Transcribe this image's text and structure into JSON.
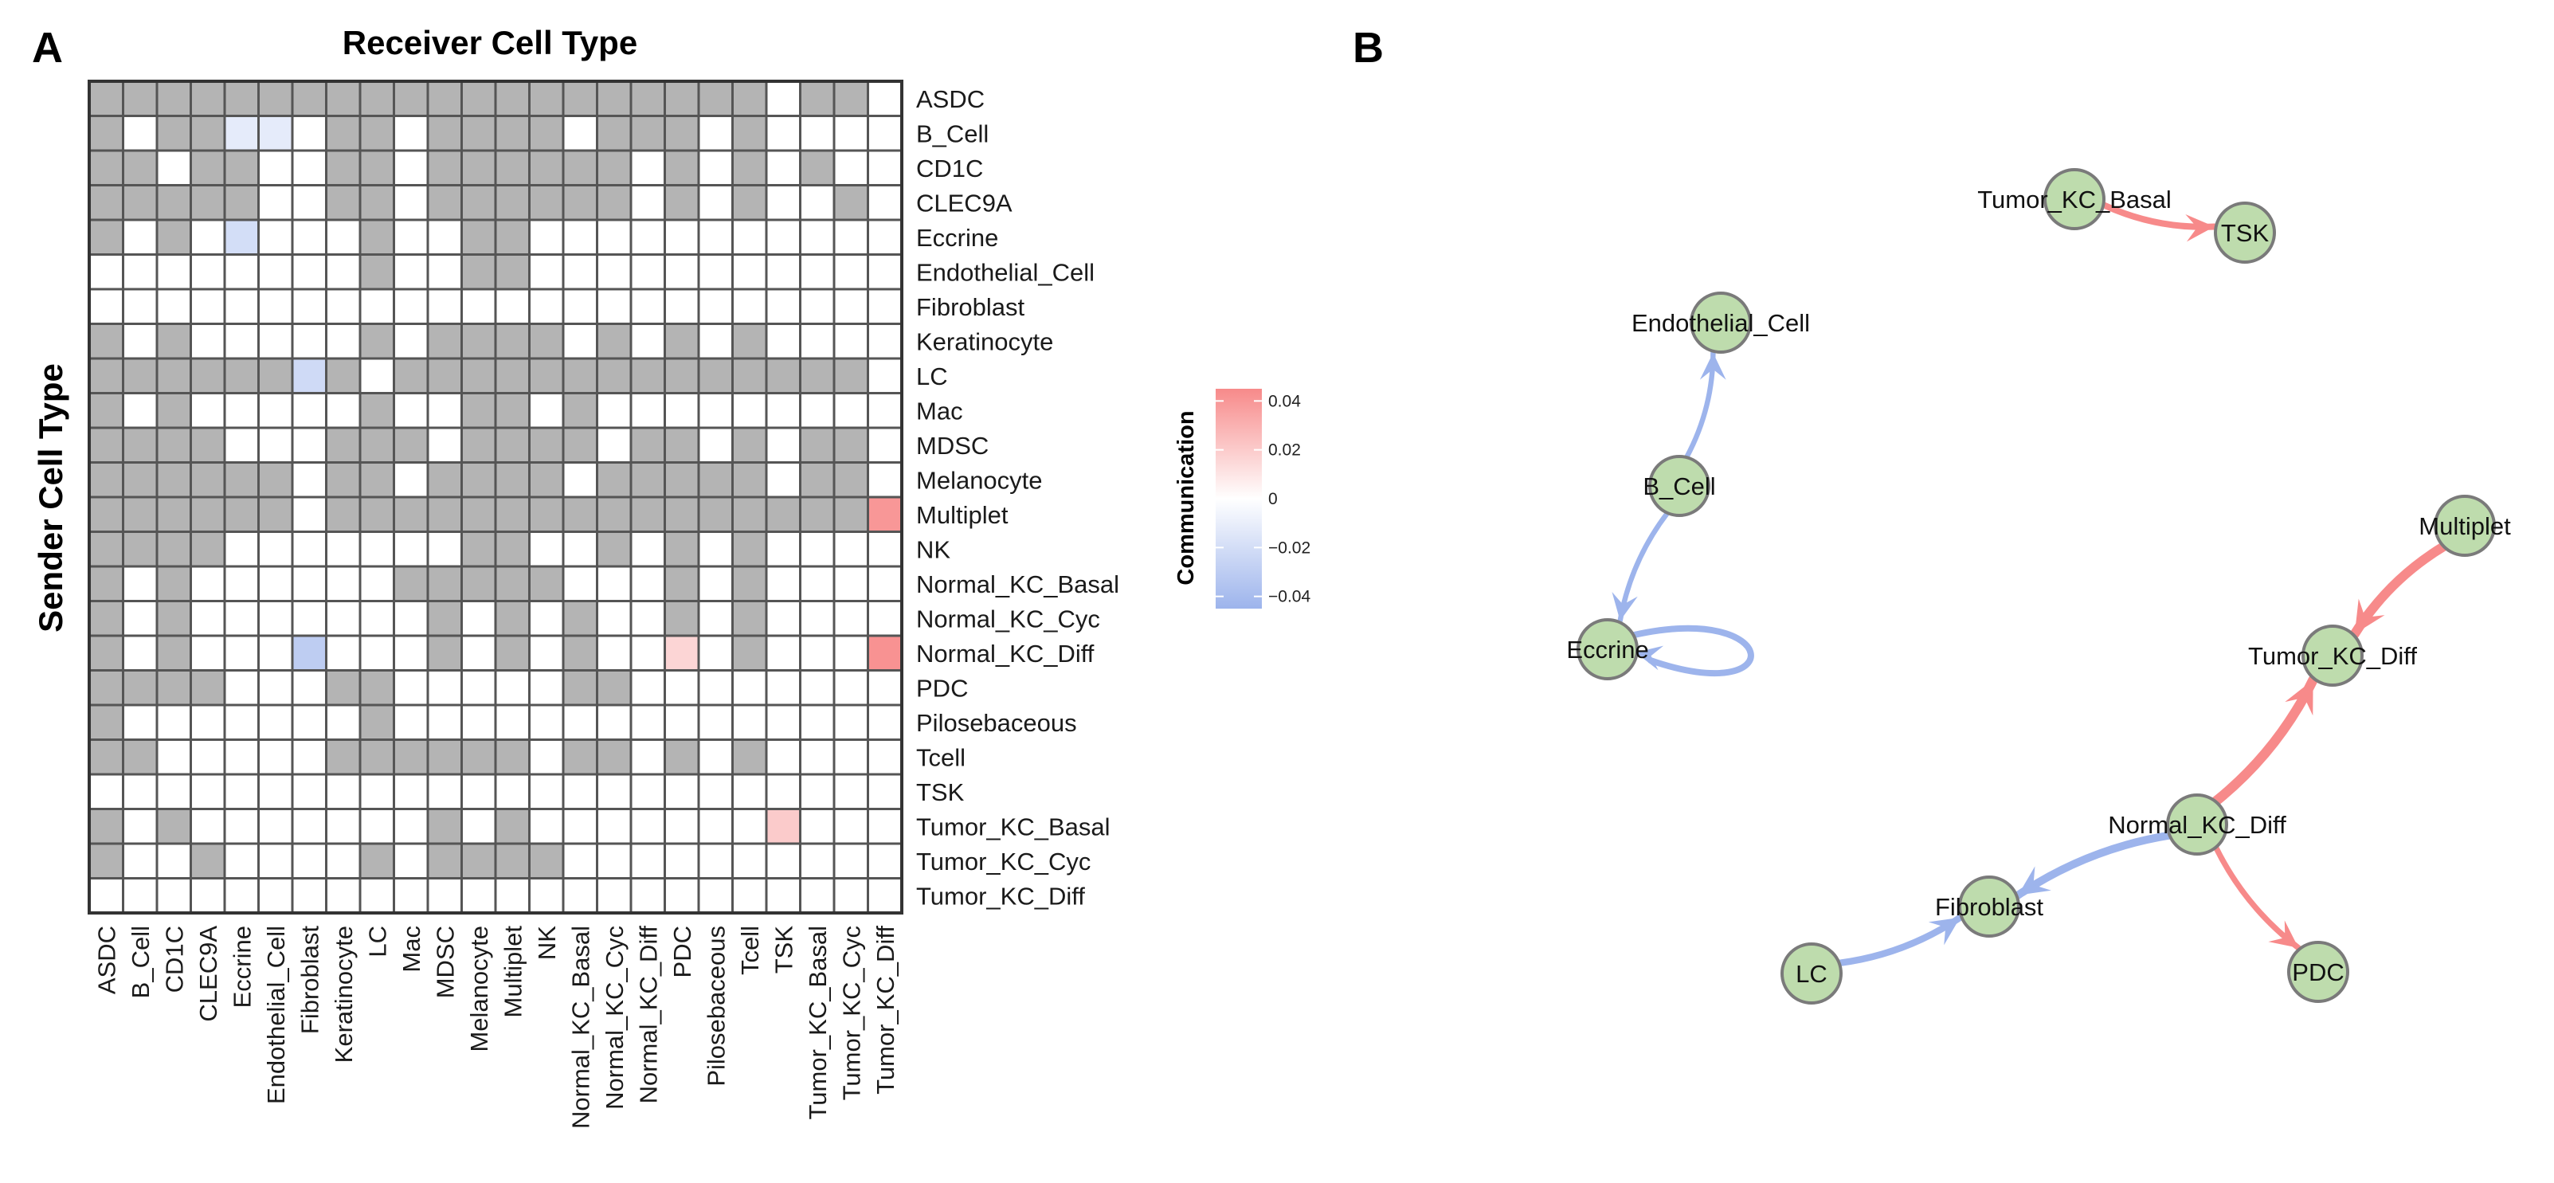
{
  "panels": {
    "a": "A",
    "b": "B"
  },
  "chart_data": [
    {
      "type": "heatmap",
      "title": "Receiver Cell Type",
      "xlabel": "Receiver Cell Type",
      "ylabel": "Sender Cell Type",
      "row_labels": [
        "ASDC",
        "B_Cell",
        "CD1C",
        "CLEC9A",
        "Eccrine",
        "Endothelial_Cell",
        "Fibroblast",
        "Keratinocyte",
        "LC",
        "Mac",
        "MDSC",
        "Melanocyte",
        "Multiplet",
        "NK",
        "Normal_KC_Basal",
        "Normal_KC_Cyc",
        "Normal_KC_Diff",
        "PDC",
        "Pilosebaceous",
        "Tcell",
        "TSK",
        "Tumor_KC_Basal",
        "Tumor_KC_Cyc",
        "Tumor_KC_Diff"
      ],
      "col_labels": [
        "ASDC",
        "B_Cell",
        "CD1C",
        "CLEC9A",
        "Eccrine",
        "Endothelial_Cell",
        "Fibroblast",
        "Keratinocyte",
        "LC",
        "Mac",
        "MDSC",
        "Melanocyte",
        "Multiplet",
        "NK",
        "Normal_KC_Basal",
        "Normal_KC_Cyc",
        "Normal_KC_Diff",
        "PDC",
        "Pilosebaceous",
        "Tcell",
        "TSK",
        "Tumor_KC_Basal",
        "Tumor_KC_Cyc",
        "Tumor_KC_Diff"
      ],
      "cell_key": "1 = grey (no communication / masked), 0 = white (zero), other numbers = communication value",
      "matrix": [
        [
          1,
          1,
          1,
          1,
          1,
          1,
          1,
          1,
          1,
          1,
          1,
          1,
          1,
          1,
          1,
          1,
          1,
          1,
          1,
          1,
          0,
          1,
          1,
          0
        ],
        [
          1,
          0,
          1,
          1,
          -0.012,
          -0.012,
          0,
          1,
          1,
          0,
          1,
          1,
          1,
          1,
          0,
          1,
          1,
          1,
          0,
          1,
          0,
          0,
          0,
          0
        ],
        [
          1,
          1,
          0,
          1,
          1,
          0,
          0,
          1,
          1,
          0,
          1,
          1,
          1,
          1,
          1,
          1,
          0,
          1,
          0,
          1,
          0,
          1,
          0,
          0
        ],
        [
          1,
          1,
          1,
          1,
          1,
          0,
          0,
          1,
          1,
          0,
          1,
          1,
          1,
          1,
          1,
          1,
          0,
          1,
          0,
          1,
          0,
          0,
          1,
          0
        ],
        [
          1,
          0,
          1,
          0,
          -0.02,
          0,
          0,
          0,
          1,
          0,
          0,
          1,
          1,
          0,
          0,
          0,
          0,
          0,
          0,
          0,
          0,
          0,
          0,
          0
        ],
        [
          0,
          0,
          0,
          0,
          0,
          0,
          0,
          0,
          1,
          0,
          0,
          1,
          1,
          0,
          0,
          0,
          0,
          0,
          0,
          0,
          0,
          0,
          0,
          0
        ],
        [
          0,
          0,
          0,
          0,
          0,
          0,
          0,
          0,
          0,
          0,
          0,
          0,
          0,
          0,
          0,
          0,
          0,
          0,
          0,
          0,
          0,
          0,
          0,
          0
        ],
        [
          1,
          0,
          1,
          0,
          0,
          0,
          0,
          0,
          1,
          0,
          1,
          1,
          1,
          1,
          0,
          1,
          0,
          1,
          0,
          1,
          0,
          0,
          0,
          0
        ],
        [
          1,
          1,
          1,
          1,
          1,
          1,
          -0.022,
          1,
          0,
          1,
          1,
          1,
          1,
          1,
          1,
          1,
          1,
          1,
          1,
          1,
          1,
          1,
          1,
          0
        ],
        [
          1,
          0,
          1,
          0,
          0,
          0,
          0,
          0,
          1,
          0,
          0,
          1,
          1,
          0,
          1,
          0,
          0,
          0,
          0,
          0,
          0,
          0,
          0,
          0
        ],
        [
          1,
          1,
          1,
          1,
          0,
          0,
          0,
          1,
          1,
          1,
          0,
          1,
          1,
          1,
          1,
          0,
          1,
          1,
          0,
          1,
          0,
          1,
          1,
          0
        ],
        [
          1,
          1,
          1,
          1,
          1,
          1,
          0,
          1,
          1,
          0,
          1,
          1,
          1,
          1,
          0,
          1,
          1,
          1,
          1,
          1,
          0,
          1,
          1,
          0
        ],
        [
          1,
          1,
          1,
          1,
          1,
          1,
          0,
          1,
          1,
          1,
          1,
          1,
          1,
          1,
          1,
          1,
          1,
          1,
          1,
          1,
          1,
          1,
          1,
          0.04
        ],
        [
          1,
          1,
          1,
          1,
          0,
          0,
          0,
          0,
          0,
          0,
          0,
          1,
          1,
          0,
          0,
          1,
          0,
          1,
          0,
          1,
          0,
          0,
          0,
          0
        ],
        [
          1,
          0,
          1,
          0,
          0,
          0,
          0,
          0,
          0,
          1,
          1,
          1,
          1,
          1,
          0,
          0,
          0,
          1,
          0,
          1,
          0,
          0,
          0,
          0
        ],
        [
          1,
          0,
          1,
          0,
          0,
          0,
          0,
          0,
          0,
          0,
          1,
          0,
          1,
          0,
          1,
          0,
          0,
          1,
          0,
          1,
          0,
          0,
          0,
          0
        ],
        [
          1,
          0,
          1,
          0,
          0,
          0,
          -0.03,
          0,
          0,
          0,
          1,
          0,
          1,
          0,
          1,
          0,
          0,
          0.016,
          0,
          1,
          0,
          0,
          0,
          0.042
        ],
        [
          1,
          1,
          1,
          1,
          0,
          0,
          0,
          1,
          1,
          0,
          0,
          0,
          0,
          0,
          1,
          1,
          0,
          0,
          0,
          0,
          0,
          0,
          0,
          0
        ],
        [
          1,
          0,
          0,
          0,
          0,
          0,
          0,
          0,
          1,
          0,
          0,
          0,
          0,
          0,
          0,
          0,
          0,
          0,
          0,
          0,
          0,
          0,
          0,
          0
        ],
        [
          1,
          1,
          0,
          0,
          0,
          0,
          0,
          1,
          1,
          1,
          1,
          1,
          1,
          0,
          1,
          1,
          0,
          1,
          0,
          1,
          0,
          0,
          0,
          0
        ],
        [
          0,
          0,
          0,
          0,
          0,
          0,
          0,
          0,
          0,
          0,
          0,
          0,
          0,
          0,
          0,
          0,
          0,
          0,
          0,
          0,
          0,
          0,
          0,
          0
        ],
        [
          1,
          0,
          1,
          0,
          0,
          0,
          0,
          0,
          0,
          0,
          1,
          0,
          1,
          0,
          0,
          0,
          0,
          0,
          0,
          0,
          0.02,
          0,
          0,
          0
        ],
        [
          1,
          0,
          0,
          1,
          0,
          0,
          0,
          0,
          1,
          0,
          1,
          1,
          1,
          1,
          0,
          0,
          0,
          0,
          0,
          0,
          0,
          0,
          0,
          0
        ],
        [
          0,
          0,
          0,
          0,
          0,
          0,
          0,
          0,
          0,
          0,
          0,
          0,
          0,
          0,
          0,
          0,
          0,
          0,
          0,
          0,
          0,
          0,
          0,
          0
        ]
      ],
      "legend": {
        "title": "Communication",
        "range": [
          -0.045,
          0.045
        ],
        "ticks": [
          0.04,
          0.02,
          0,
          -0.02,
          -0.04
        ],
        "tick_labels": [
          "0.04",
          "0.02",
          "0",
          "−0.02",
          "−0.04"
        ],
        "colors": {
          "high": "#f78a8a",
          "mid": "#ffffff",
          "low": "#9db4ec",
          "na": "#b4b4b4"
        }
      }
    },
    {
      "type": "network",
      "nodes": [
        "Tumor_KC_Basal",
        "TSK",
        "Endothelial_Cell",
        "B_Cell",
        "Eccrine",
        "Multiplet",
        "Tumor_KC_Diff",
        "Normal_KC_Diff",
        "Fibroblast",
        "LC",
        "PDC"
      ],
      "edges": [
        {
          "source": "Tumor_KC_Basal",
          "target": "TSK",
          "value": 0.02
        },
        {
          "source": "B_Cell",
          "target": "Endothelial_Cell",
          "value": -0.012
        },
        {
          "source": "B_Cell",
          "target": "Eccrine",
          "value": -0.012
        },
        {
          "source": "Eccrine",
          "target": "Eccrine",
          "value": -0.02
        },
        {
          "source": "Multiplet",
          "target": "Tumor_KC_Diff",
          "value": 0.04
        },
        {
          "source": "Normal_KC_Diff",
          "target": "Tumor_KC_Diff",
          "value": 0.042
        },
        {
          "source": "Normal_KC_Diff",
          "target": "Fibroblast",
          "value": -0.03
        },
        {
          "source": "Normal_KC_Diff",
          "target": "PDC",
          "value": 0.016
        },
        {
          "source": "LC",
          "target": "Fibroblast",
          "value": -0.022
        }
      ],
      "colors": {
        "positive": "#f78a8a",
        "negative": "#9db4ec",
        "node_fill": "#bedcad",
        "node_stroke": "#7a7a7a"
      }
    }
  ]
}
